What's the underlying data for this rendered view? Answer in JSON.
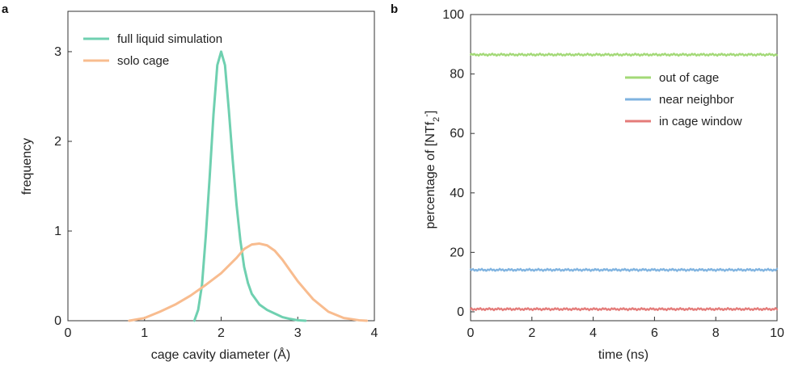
{
  "figure": {
    "panel_a": "a",
    "panel_b": "b"
  },
  "chart_data": [
    {
      "type": "line",
      "panel": "a",
      "xlabel": "cage cavity diameter (Å)",
      "ylabel": "frequency",
      "xlim": [
        0,
        4
      ],
      "ylim": [
        0,
        3.45
      ],
      "xticks": [
        0,
        1,
        2,
        3,
        4
      ],
      "yticks": [
        0,
        1,
        2,
        3
      ],
      "legend_position": "top-left",
      "series": [
        {
          "name": "full liquid simulation",
          "color": "#6fd0b0",
          "x": [
            1.65,
            1.7,
            1.75,
            1.8,
            1.85,
            1.9,
            1.95,
            2.0,
            2.05,
            2.1,
            2.15,
            2.2,
            2.25,
            2.3,
            2.35,
            2.4,
            2.5,
            2.6,
            2.7,
            2.8,
            2.9,
            3.0,
            3.1
          ],
          "y": [
            0,
            0.12,
            0.4,
            0.95,
            1.6,
            2.3,
            2.85,
            3.0,
            2.85,
            2.35,
            1.8,
            1.3,
            0.9,
            0.6,
            0.42,
            0.3,
            0.18,
            0.12,
            0.08,
            0.04,
            0.02,
            0.005,
            0
          ]
        },
        {
          "name": "solo cage",
          "color": "#f8bc8f",
          "x": [
            0.8,
            1.0,
            1.2,
            1.4,
            1.6,
            1.8,
            2.0,
            2.2,
            2.3,
            2.4,
            2.5,
            2.6,
            2.7,
            2.8,
            2.9,
            3.0,
            3.2,
            3.4,
            3.6,
            3.8,
            3.9
          ],
          "y": [
            0,
            0.03,
            0.1,
            0.18,
            0.28,
            0.4,
            0.53,
            0.7,
            0.8,
            0.85,
            0.86,
            0.84,
            0.78,
            0.68,
            0.56,
            0.44,
            0.24,
            0.1,
            0.03,
            0.005,
            0
          ]
        }
      ]
    },
    {
      "type": "line",
      "panel": "b",
      "xlabel": "time (ns)",
      "ylabel_main": "percentage of [NTf",
      "ylabel_sub": "2",
      "ylabel_sup": "-",
      "ylabel_close": "]",
      "xlim": [
        0,
        10
      ],
      "ylim": [
        -3,
        100
      ],
      "xticks": [
        0,
        2,
        4,
        6,
        8,
        10
      ],
      "yticks": [
        0,
        20,
        40,
        60,
        80,
        100
      ],
      "legend_position": "top-right",
      "series": [
        {
          "name": "out of cage",
          "color": "#a3d977",
          "x": [
            0,
            10
          ],
          "y": [
            86.5,
            86.5
          ]
        },
        {
          "name": "near neighbor",
          "color": "#7fb3e0",
          "x": [
            0,
            10
          ],
          "y": [
            14.1,
            14.1
          ]
        },
        {
          "name": "in cage window",
          "color": "#e47b79",
          "x": [
            0,
            10
          ],
          "y": [
            0.9,
            0.9
          ]
        }
      ]
    }
  ]
}
